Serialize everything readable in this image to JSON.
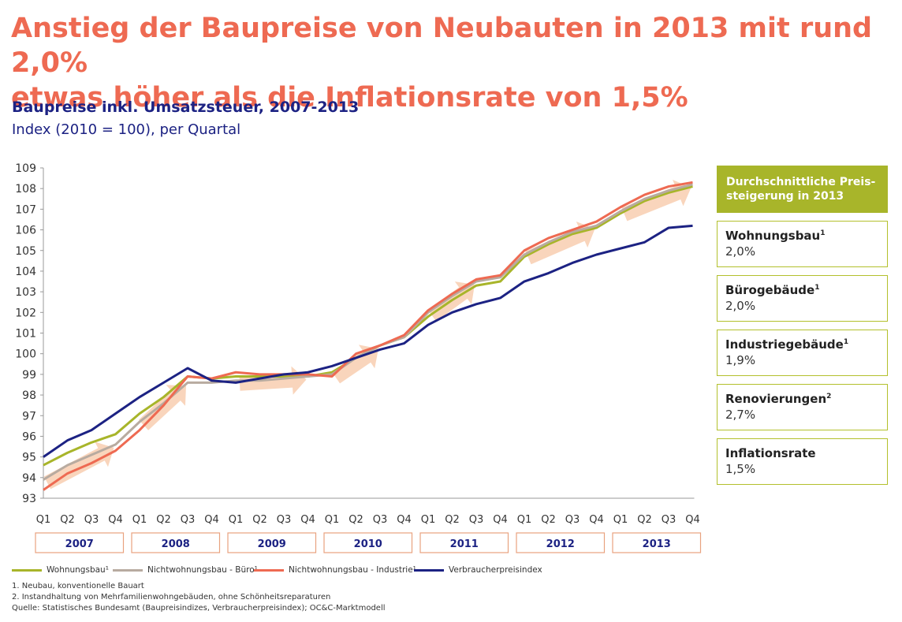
{
  "headline": {
    "line1": "Anstieg der Baupreise von Neubauten in 2013 mit rund 2,0%",
    "line2": "etwas höher als die Inflationsrate von 1,5%"
  },
  "chart_data": {
    "type": "line",
    "title": "Baupreise inkl. Umsatzsteuer, 2007-2013",
    "subtitle": "Index (2010 = 100), per Quartal",
    "ylim": [
      93,
      109
    ],
    "yticks": [
      93,
      94,
      95,
      96,
      97,
      98,
      99,
      100,
      101,
      102,
      103,
      104,
      105,
      106,
      107,
      108,
      109
    ],
    "x": [
      "Q1",
      "Q2",
      "Q3",
      "Q4",
      "Q1",
      "Q2",
      "Q3",
      "Q4",
      "Q1",
      "Q2",
      "Q3",
      "Q4",
      "Q1",
      "Q2",
      "Q3",
      "Q4",
      "Q1",
      "Q2",
      "Q3",
      "Q4",
      "Q1",
      "Q2",
      "Q3",
      "Q4",
      "Q1",
      "Q2",
      "Q3",
      "Q4"
    ],
    "years": [
      "2007",
      "2008",
      "2009",
      "2010",
      "2011",
      "2012",
      "2013"
    ],
    "series": [
      {
        "key": "wohnungsbau",
        "color": "#a8b52a",
        "values": [
          94.6,
          95.2,
          95.7,
          96.1,
          97.1,
          97.9,
          98.9,
          98.8,
          98.9,
          98.9,
          98.9,
          98.9,
          99.1,
          99.8,
          100.4,
          100.8,
          101.8,
          102.6,
          103.3,
          103.5,
          104.7,
          105.3,
          105.8,
          106.1,
          106.8,
          107.4,
          107.8,
          108.1
        ]
      },
      {
        "key": "buero",
        "color": "#b8aba0",
        "values": [
          93.9,
          94.6,
          95.1,
          95.6,
          96.7,
          97.6,
          98.6,
          98.6,
          98.7,
          98.7,
          98.8,
          98.9,
          99.0,
          99.8,
          100.4,
          100.8,
          102.0,
          102.8,
          103.5,
          103.7,
          104.8,
          105.4,
          105.9,
          106.2,
          106.9,
          107.5,
          107.9,
          108.2
        ]
      },
      {
        "key": "industrie",
        "color": "#ee6a52",
        "values": [
          93.4,
          94.2,
          94.7,
          95.3,
          96.3,
          97.5,
          98.9,
          98.8,
          99.1,
          99.0,
          99.0,
          99.0,
          98.9,
          100.0,
          100.4,
          100.9,
          102.1,
          102.9,
          103.6,
          103.8,
          105.0,
          105.6,
          106.0,
          106.4,
          107.1,
          107.7,
          108.1,
          108.3
        ]
      },
      {
        "key": "vpi",
        "color": "#1c2283",
        "values": [
          95.0,
          95.8,
          96.3,
          97.1,
          97.9,
          98.6,
          99.3,
          98.7,
          98.6,
          98.8,
          99.0,
          99.1,
          99.4,
          99.8,
          100.2,
          100.5,
          101.4,
          102.0,
          102.4,
          102.7,
          103.5,
          103.9,
          104.4,
          104.8,
          105.1,
          105.4,
          106.1,
          106.2
        ]
      }
    ]
  },
  "legend": {
    "wohnungsbau": "Wohnungsbau¹",
    "buero": "Nichtwohnungsbau - Büro¹",
    "industrie": "Nichtwohnungsbau - Industrie¹",
    "vpi": "Verbraucherpreisindex"
  },
  "sidebar": {
    "header": "Durchschnittliche Preis-steigerung in 2013",
    "header_line1": "Durchschnittliche Preis-",
    "header_line2": "steigerung in 2013",
    "items": [
      {
        "name": "Wohnungsbau",
        "sup": "1",
        "value": "2,0%"
      },
      {
        "name": "Bürogebäude",
        "sup": "1",
        "value": "2,0%"
      },
      {
        "name": "Industriegebäude",
        "sup": "1",
        "value": "1,9%"
      },
      {
        "name": "Renovierungen",
        "sup": "2",
        "value": "2,7%"
      },
      {
        "name": "Inflationsrate",
        "sup": "",
        "value": "1,5%"
      }
    ]
  },
  "notes": {
    "n1": "1.     Neubau, konventionelle Bauart",
    "n2": "2.     Instandhaltung von Mehrfamilienwohngebäuden, ohne Schönheitsreparaturen",
    "source": "Quelle: Statistisches Bundesamt (Baupreisindizes, Verbraucherpreisindex); OC&C-Marktmodell"
  }
}
